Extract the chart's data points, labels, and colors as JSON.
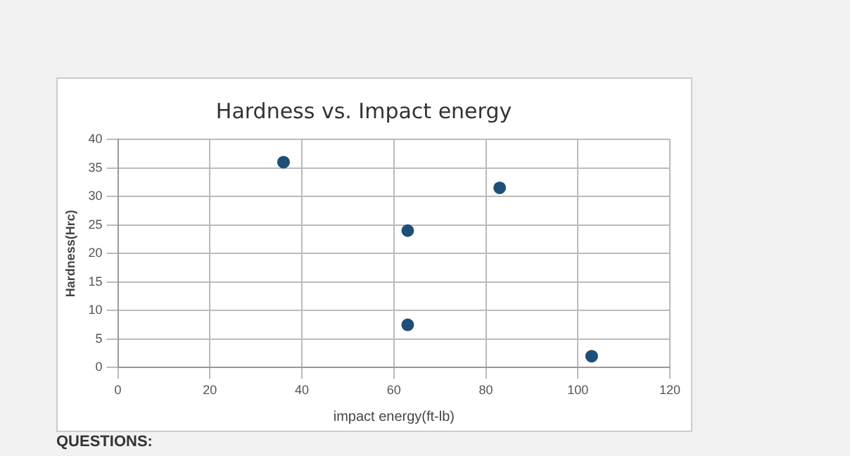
{
  "chart_data": {
    "type": "scatter",
    "title": "Hardness vs. Impact energy",
    "xlabel": "impact energy(ft-lb)",
    "ylabel": "Hardness(Hrc)",
    "x": [
      36,
      83,
      63,
      63,
      103
    ],
    "series": [
      {
        "color": "#1f4e79",
        "values": [
          36,
          31.5,
          24,
          7.5,
          2
        ]
      }
    ],
    "xlim": [
      0,
      120
    ],
    "xticks": [
      0,
      20,
      40,
      60,
      80,
      100,
      120
    ],
    "ylim": [
      0,
      40
    ],
    "yticks": [
      0,
      5,
      10,
      15,
      20,
      25,
      30,
      35,
      40
    ],
    "grid": true,
    "legend": false,
    "marker": "circle",
    "annotations": [
      "QUESTIONS:"
    ]
  }
}
